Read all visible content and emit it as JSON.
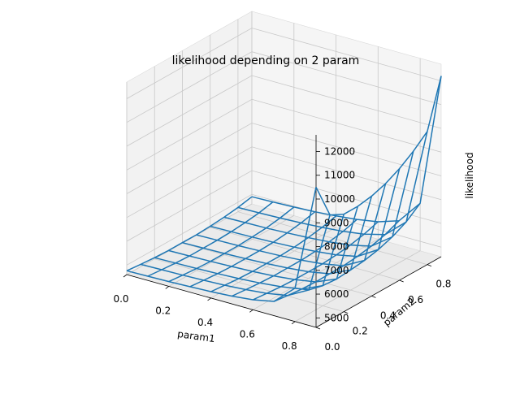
{
  "chart_data": {
    "type": "wireframe3d",
    "title": "likelihood depending on 2 param",
    "xlabel": "param1",
    "ylabel": "param2",
    "zlabel": "likelihood",
    "x_ticks": [
      "0.0",
      "0.2",
      "0.4",
      "0.6",
      "0.8"
    ],
    "y_ticks": [
      "0.0",
      "0.2",
      "0.4",
      "0.6",
      "0.8"
    ],
    "z_ticks": [
      "5000",
      "6000",
      "7000",
      "8000",
      "9000",
      "10000",
      "11000",
      "12000"
    ],
    "xlim": [
      0.0,
      0.9
    ],
    "ylim": [
      0.0,
      0.9
    ],
    "zlim": [
      4600,
      12700
    ],
    "grid": true,
    "line_color": "#1f77b4",
    "pane_color": "#f2f2f2",
    "x": [
      0.0,
      0.1,
      0.2,
      0.3,
      0.4,
      0.5,
      0.6,
      0.7,
      0.8,
      0.9
    ],
    "y": [
      0.0,
      0.1,
      0.2,
      0.3,
      0.4,
      0.5,
      0.6,
      0.7,
      0.8,
      0.9
    ],
    "z": [
      [
        4760,
        4700,
        4650,
        4620,
        4620,
        4620,
        4650,
        4700,
        4780,
        4900
      ],
      [
        4780,
        4720,
        4670,
        4640,
        4640,
        4640,
        4670,
        4720,
        4800,
        4930
      ],
      [
        4800,
        4740,
        4690,
        4660,
        4660,
        4660,
        4690,
        4740,
        4830,
        4960
      ],
      [
        4830,
        4770,
        4720,
        4690,
        4690,
        4690,
        4720,
        4780,
        4870,
        5010
      ],
      [
        4870,
        4810,
        4760,
        4730,
        4730,
        4730,
        4760,
        4830,
        4930,
        5080
      ],
      [
        4930,
        4870,
        4820,
        4790,
        4790,
        4790,
        4830,
        4900,
        5010,
        5180
      ],
      [
        5020,
        4960,
        4910,
        4880,
        4880,
        4880,
        4930,
        5010,
        5140,
        5330
      ],
      [
        5200,
        5120,
        5060,
        5030,
        5040,
        5050,
        5110,
        5210,
        5370,
        5620
      ],
      [
        6000,
        5600,
        5450,
        5400,
        5450,
        5520,
        5650,
        5850,
        6150,
        6600
      ],
      [
        10500,
        9000,
        8700,
        8700,
        8800,
        9000,
        9300,
        9700,
        10200,
        12200
      ]
    ]
  }
}
